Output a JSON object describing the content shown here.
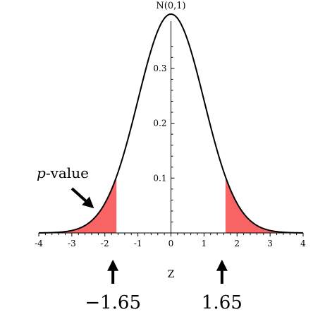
{
  "chart_data": {
    "type": "area",
    "title": "N(0,1)",
    "xlabel": "Z",
    "ylabel": "",
    "xlim": [
      -4,
      4
    ],
    "ylim": [
      0,
      0.4
    ],
    "x_ticks": [
      -4,
      -3,
      -2,
      -1,
      0,
      1,
      2,
      3,
      4
    ],
    "x_tick_labels": [
      "-4",
      "-3",
      "-2",
      "-1",
      "0",
      "1",
      "2",
      "3",
      "4"
    ],
    "y_ticks": [
      0.1,
      0.2,
      0.3
    ],
    "y_tick_labels": [
      "0.1",
      "0.2",
      "0.3"
    ],
    "series": [
      {
        "distribution": "standard normal",
        "mean": 0,
        "sd": 1,
        "color": "#000000"
      }
    ],
    "shaded_regions": [
      {
        "from": -4,
        "to": -1.65,
        "color": "#f86464"
      },
      {
        "from": 1.65,
        "to": 4,
        "color": "#f86464"
      }
    ],
    "annotations": {
      "p_value": {
        "italic_part": "p",
        "rest": "-value"
      },
      "critical_values": [
        {
          "x": -1.65,
          "label": "−1.65"
        },
        {
          "x": 1.65,
          "label": "1.65"
        }
      ]
    },
    "grid": false,
    "legend": "none"
  }
}
